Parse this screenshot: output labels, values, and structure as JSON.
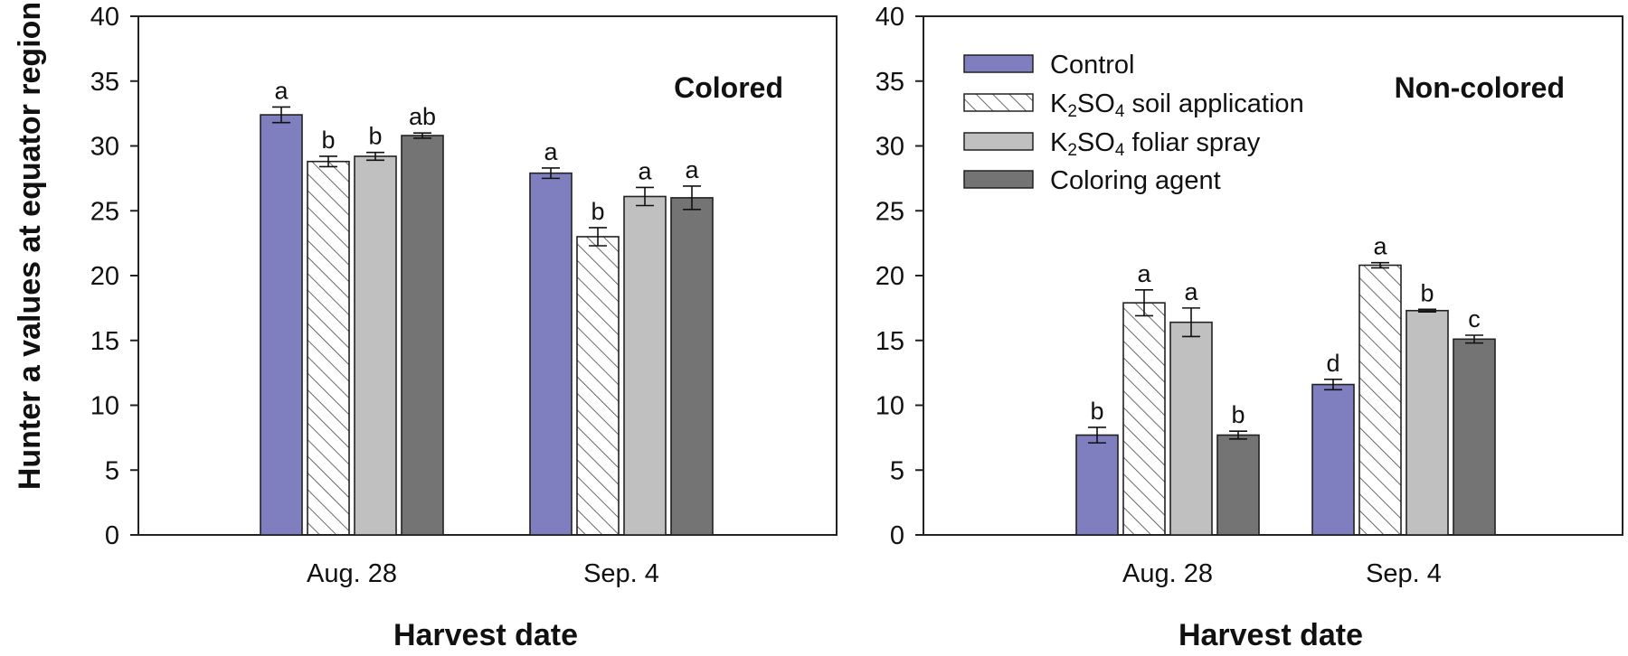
{
  "chart_data": [
    {
      "type": "bar",
      "title": "Colored",
      "xlabel": "Harvest date",
      "ylabel": "Hunter a values at equator region",
      "ylim": [
        0,
        40
      ],
      "yticks": [
        0,
        5,
        10,
        15,
        20,
        25,
        30,
        35,
        40
      ],
      "grid": false,
      "legend": false,
      "categories": [
        "Aug. 28",
        "Sep. 4"
      ],
      "series": [
        {
          "name": "Control",
          "values": [
            32.4,
            27.9
          ],
          "errors": [
            0.6,
            0.4
          ],
          "letters": [
            "a",
            "a"
          ]
        },
        {
          "name": "K2SO4 soil application",
          "values": [
            28.8,
            23.0
          ],
          "errors": [
            0.4,
            0.7
          ],
          "letters": [
            "b",
            "b"
          ]
        },
        {
          "name": "K2SO4 foliar spray",
          "values": [
            29.2,
            26.1
          ],
          "errors": [
            0.3,
            0.7
          ],
          "letters": [
            "b",
            "a"
          ]
        },
        {
          "name": "Coloring agent",
          "values": [
            30.8,
            26.0
          ],
          "errors": [
            0.2,
            0.9
          ],
          "letters": [
            "ab",
            "a"
          ]
        }
      ]
    },
    {
      "type": "bar",
      "title": "Non-colored",
      "xlabel": "Harvest date",
      "ylabel": "",
      "ylim": [
        0,
        40
      ],
      "yticks": [
        0,
        5,
        10,
        15,
        20,
        25,
        30,
        35,
        40
      ],
      "grid": false,
      "legend": "top-left",
      "categories": [
        "Aug. 28",
        "Sep. 4"
      ],
      "series": [
        {
          "name": "Control",
          "values": [
            7.7,
            11.6
          ],
          "errors": [
            0.6,
            0.4
          ],
          "letters": [
            "b",
            "d"
          ]
        },
        {
          "name": "K2SO4 soil application",
          "values": [
            17.9,
            20.8
          ],
          "errors": [
            1.0,
            0.2
          ],
          "letters": [
            "a",
            "a"
          ]
        },
        {
          "name": "K2SO4 foliar spray",
          "values": [
            16.4,
            17.3
          ],
          "errors": [
            1.1,
            0.1
          ],
          "letters": [
            "a",
            "b"
          ]
        },
        {
          "name": "Coloring agent",
          "values": [
            7.7,
            15.1
          ],
          "errors": [
            0.3,
            0.3
          ],
          "letters": [
            "b",
            "c"
          ]
        }
      ]
    }
  ],
  "legend": {
    "items": [
      {
        "pre": "Control",
        "sub": "",
        "mid": "",
        "sub2": "",
        "post": ""
      },
      {
        "pre": "K",
        "sub": "2",
        "mid": "SO",
        "sub2": "4",
        "post": " soil application"
      },
      {
        "pre": "K",
        "sub": "2",
        "mid": "SO",
        "sub2": "4",
        "post": " foliar spray"
      },
      {
        "pre": "Coloring agent",
        "sub": "",
        "mid": "",
        "sub2": "",
        "post": ""
      }
    ]
  },
  "colors": {
    "control": "#7f7fbf",
    "soil": "#ffffff",
    "foliar": "#c0c0c0",
    "agent": "#747474",
    "axis": "#222222",
    "hatch": "#444444"
  }
}
